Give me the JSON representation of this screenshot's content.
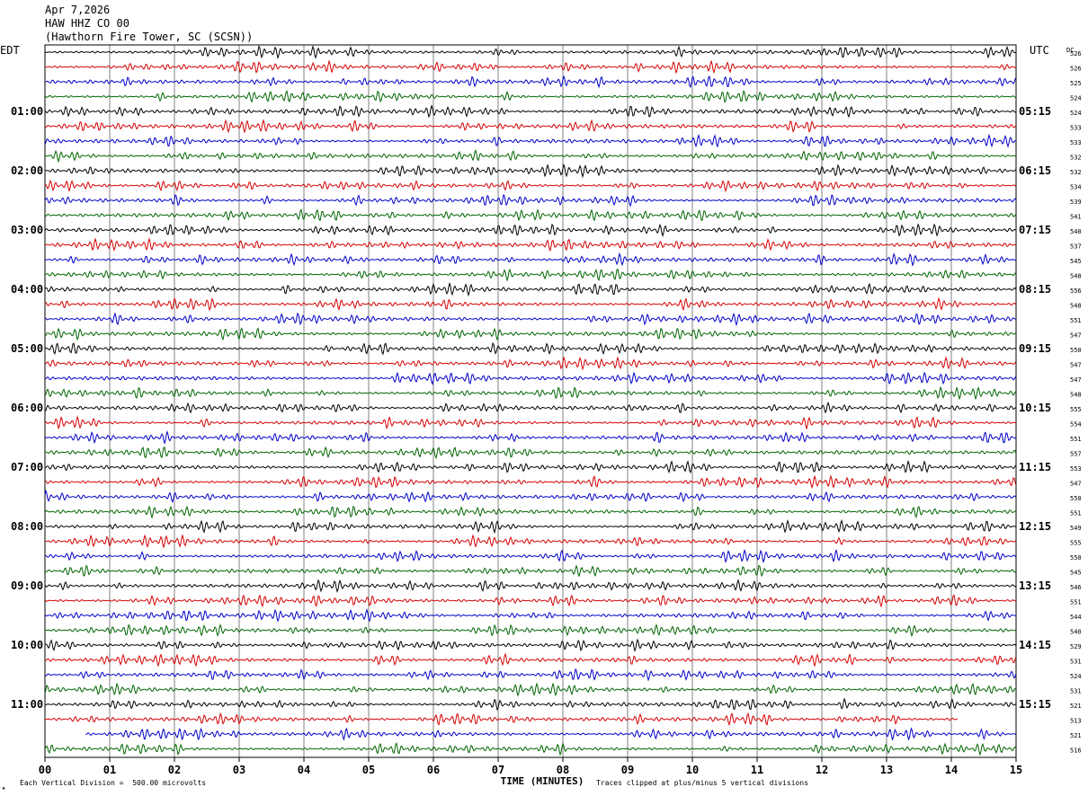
{
  "header": {
    "date": "Apr 7,2026",
    "station": "HAW HHZ CO 00",
    "location": "(Hawthorn Fire Tower, SC (SCSN))"
  },
  "footer": {
    "scale_note": "Each Vertical Division =  500.00 microvolts",
    "clip_note": "Traces clipped at plus/minus 5 vertical divisions"
  },
  "colors": {
    "trace_cycle": [
      "#000000",
      "#d40000",
      "#0000c8",
      "#006400"
    ],
    "grid": "#808080",
    "frame": "#000000"
  },
  "chart_data": {
    "type": "line",
    "subtype": "helicorder",
    "left_axis_label": "EDT",
    "right_axis_label": "UTC",
    "dc_label": "DC",
    "xlabel": "TIME (MINUTES)",
    "xlim": [
      0,
      15
    ],
    "x_ticks": [
      "00",
      "01",
      "02",
      "03",
      "04",
      "05",
      "06",
      "07",
      "08",
      "09",
      "10",
      "11",
      "12",
      "13",
      "14",
      "15"
    ],
    "edt_hour_labels": [
      "01:00",
      "02:00",
      "03:00",
      "04:00",
      "05:00",
      "06:00",
      "07:00",
      "08:00",
      "09:00",
      "10:00",
      "11:00"
    ],
    "utc_hour_labels": [
      "05:15",
      "06:15",
      "07:15",
      "08:15",
      "09:15",
      "10:15",
      "11:15",
      "12:15",
      "13:15",
      "14:15",
      "15:15"
    ],
    "dc_offsets": [
      526,
      526,
      525,
      524,
      524,
      533,
      533,
      532,
      532,
      534,
      539,
      541,
      540,
      537,
      545,
      548,
      556,
      548,
      551,
      547,
      550,
      547,
      547,
      548,
      555,
      554,
      551,
      557,
      553,
      547,
      550,
      551,
      549,
      555,
      550,
      545,
      546,
      551,
      544,
      540,
      529,
      531,
      524,
      531,
      521,
      513,
      521,
      516
    ],
    "trace_start_minute": [
      0,
      0,
      0,
      0,
      0,
      0,
      0,
      0,
      0,
      0,
      0,
      0,
      0,
      0,
      0,
      0,
      0,
      0,
      0,
      0,
      0,
      0,
      0,
      0,
      0,
      0,
      0,
      0,
      0,
      0,
      0,
      0,
      0,
      0,
      0,
      0,
      0,
      0,
      0,
      0,
      0,
      0,
      0,
      0,
      0,
      0,
      0.63,
      0
    ],
    "trace_end_minute": [
      15,
      15,
      15,
      15,
      15,
      15,
      15,
      15,
      15,
      15,
      15,
      15,
      15,
      15,
      15,
      15,
      15,
      15,
      15,
      15,
      15,
      15,
      15,
      15,
      15,
      15,
      15,
      15,
      15,
      15,
      15,
      15,
      15,
      15,
      15,
      15,
      15,
      15,
      15,
      15,
      15,
      15,
      15,
      15,
      15,
      14.1,
      15,
      15
    ]
  }
}
